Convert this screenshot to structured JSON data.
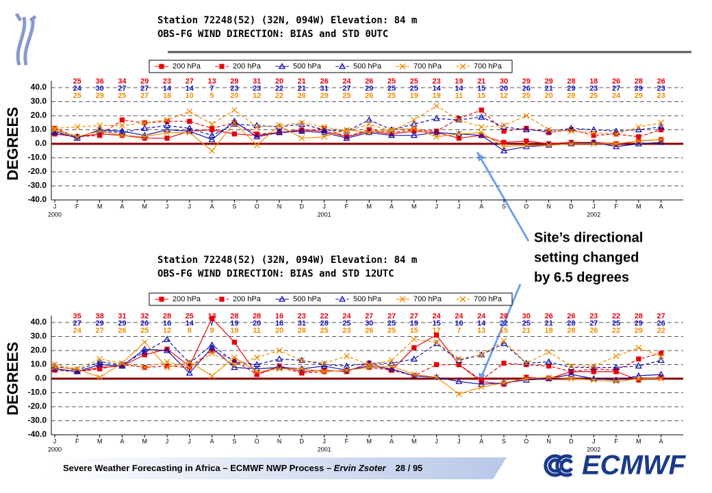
{
  "chart_data": [
    {
      "type": "line",
      "title": "Station 72248(52)  (32N, 094W) Elevation:   84 m",
      "subtitle": "OBS-FG WIND DIRECTION: BIAS and STD 0UTC",
      "ylabel": "DEGREES",
      "categories": [
        "J",
        "F",
        "M",
        "A",
        "M",
        "J",
        "J",
        "A",
        "S",
        "O",
        "N",
        "D",
        "J",
        "F",
        "M",
        "A",
        "M",
        "J",
        "J",
        "A",
        "S",
        "O",
        "N",
        "D",
        "J",
        "F",
        "M",
        "A"
      ],
      "years": [
        "2000",
        "2001",
        "2002"
      ],
      "ylim": [
        -40,
        40
      ],
      "yticks": [
        {
          "value": -40,
          "label": "-40.0"
        },
        {
          "value": -30,
          "label": "-30.0"
        },
        {
          "value": -20,
          "label": "-20.0"
        },
        {
          "value": -10,
          "label": "-10.0"
        },
        {
          "value": 0,
          "label": "0.0"
        },
        {
          "value": 10,
          "label": "10.0"
        },
        {
          "value": 20,
          "label": "20.0"
        },
        {
          "value": 30,
          "label": "30.0"
        },
        {
          "value": 40,
          "label": "40.0"
        }
      ],
      "grid": true,
      "hline": 0,
      "hline_color": "#8b0000",
      "series": [
        {
          "name": "200 hPa",
          "color": "#e8000b",
          "marker": "square",
          "line_style": "solid",
          "values": [
            7,
            5,
            7,
            6,
            4,
            4,
            9,
            10,
            7,
            6,
            8,
            10,
            9,
            5,
            9,
            7,
            9,
            8,
            4,
            6,
            1,
            2,
            0,
            1,
            1,
            0,
            2,
            3
          ]
        },
        {
          "name": "200 hPa",
          "color": "#e8000b",
          "marker": "square",
          "line_style": "dashed",
          "values": [
            11,
            5,
            6,
            17,
            15,
            16,
            16,
            11,
            15,
            7,
            8,
            9,
            11,
            5,
            10,
            8,
            10,
            9,
            18,
            24,
            9,
            11,
            8,
            10,
            6,
            7,
            5,
            10
          ]
        },
        {
          "name": "500 hPa",
          "color": "#1010b0",
          "marker": "triangle",
          "line_style": "solid",
          "values": [
            9,
            4,
            10,
            9,
            6,
            10,
            9,
            3,
            16,
            5,
            8,
            9,
            8,
            4,
            8,
            6,
            6,
            8,
            7,
            6,
            -5,
            -2,
            -1,
            0,
            1,
            -2,
            0,
            1
          ]
        },
        {
          "name": "500 hPa",
          "color": "#1010b0",
          "marker": "triangle",
          "line_style": "dashed",
          "values": [
            8,
            5,
            9,
            8,
            11,
            13,
            11,
            6,
            14,
            13,
            12,
            14,
            10,
            9,
            17,
            10,
            14,
            18,
            17,
            19,
            12,
            10,
            9,
            11,
            10,
            9,
            10,
            12
          ]
        },
        {
          "name": "700 hPa",
          "color": "#f08c00",
          "marker": "x",
          "line_style": "solid",
          "values": [
            10,
            5,
            9,
            6,
            5,
            8,
            8,
            -5,
            15,
            -1,
            13,
            4,
            5,
            10,
            8,
            10,
            11,
            5,
            7,
            8,
            -2,
            -1,
            -1,
            0,
            0,
            0,
            2,
            3
          ]
        },
        {
          "name": "700 hPa",
          "color": "#f08c00",
          "marker": "x",
          "line_style": "dashed",
          "values": [
            11,
            12,
            13,
            13,
            15,
            17,
            23,
            14,
            24,
            12,
            13,
            15,
            12,
            9,
            14,
            9,
            17,
            27,
            17,
            12,
            13,
            20,
            10,
            9,
            8,
            7,
            12,
            15
          ]
        }
      ],
      "counts": [
        {
          "color": "#e8000b",
          "values": [
            null,
            25,
            36,
            34,
            29,
            23,
            27,
            13,
            29,
            31,
            20,
            21,
            26,
            24,
            26,
            25,
            25,
            23,
            19,
            21,
            30,
            29,
            29,
            28,
            18,
            26,
            28,
            26
          ]
        },
        {
          "color": "#1010b0",
          "values": [
            null,
            24,
            30,
            27,
            27,
            14,
            14,
            7,
            23,
            23,
            22,
            21,
            31,
            27,
            29,
            25,
            25,
            14,
            14,
            15,
            20,
            26,
            21,
            29,
            23,
            27,
            29,
            23
          ]
        },
        {
          "color": "#f08c00",
          "values": [
            null,
            25,
            29,
            25,
            27,
            18,
            10,
            5,
            20,
            12,
            22,
            26,
            29,
            25,
            26,
            25,
            19,
            19,
            11,
            15,
            12,
            25,
            20,
            28,
            25,
            24,
            29,
            23
          ]
        }
      ]
    },
    {
      "type": "line",
      "title": "Station 72248(52)  (32N, 094W) Elevation:   84 m",
      "subtitle": "OBS-FG WIND DIRECTION: BIAS and STD 12UTC",
      "ylabel": "DEGREES",
      "categories": [
        "J",
        "F",
        "M",
        "A",
        "M",
        "J",
        "J",
        "A",
        "S",
        "O",
        "N",
        "D",
        "J",
        "F",
        "M",
        "A",
        "M",
        "J",
        "J",
        "A",
        "S",
        "O",
        "N",
        "D",
        "J",
        "F",
        "M",
        "A"
      ],
      "years": [
        "2000",
        "2001",
        "2002"
      ],
      "ylim": [
        -40,
        40
      ],
      "yticks": [
        {
          "value": -40,
          "label": "-40.0"
        },
        {
          "value": -30,
          "label": "-30.0"
        },
        {
          "value": -20,
          "label": "-20.0"
        },
        {
          "value": -10,
          "label": "-10.0"
        },
        {
          "value": 0,
          "label": "0.0"
        },
        {
          "value": 10,
          "label": "10.0"
        },
        {
          "value": 20,
          "label": "20.0"
        },
        {
          "value": 30,
          "label": "30.0"
        },
        {
          "value": 40,
          "label": "40.0"
        }
      ],
      "grid": true,
      "hline": 0,
      "hline_color": "#8b0000",
      "series": [
        {
          "name": "200 hPa",
          "color": "#e8000b",
          "marker": "square",
          "line_style": "solid",
          "values": [
            7,
            5,
            8,
            9,
            17,
            21,
            9,
            43,
            26,
            3,
            9,
            5,
            6,
            5,
            11,
            6,
            22,
            31,
            10,
            -2,
            -4,
            1,
            0,
            5,
            5,
            5,
            -1,
            1
          ]
        },
        {
          "name": "200 hPa",
          "color": "#e8000b",
          "marker": "square",
          "line_style": "dashed",
          "values": [
            6,
            5,
            7,
            10,
            8,
            9,
            8,
            20,
            13,
            3,
            8,
            4,
            5,
            6,
            8,
            6,
            2,
            10,
            10,
            -1,
            11,
            10,
            9,
            5,
            7,
            6,
            14,
            18
          ]
        },
        {
          "name": "500 hPa",
          "color": "#1010b0",
          "marker": "triangle",
          "line_style": "solid",
          "values": [
            7,
            5,
            10,
            9,
            21,
            20,
            4,
            22,
            8,
            7,
            8,
            7,
            9,
            6,
            9,
            7,
            2,
            1,
            -2,
            -4,
            -3,
            -1,
            0,
            3,
            0,
            -1,
            2,
            3
          ]
        },
        {
          "name": "500 hPa",
          "color": "#1010b0",
          "marker": "triangle",
          "line_style": "dashed",
          "values": [
            9,
            6,
            12,
            10,
            19,
            28,
            11,
            24,
            12,
            10,
            14,
            13,
            10,
            9,
            11,
            11,
            14,
            25,
            13,
            17,
            25,
            11,
            12,
            8,
            8,
            8,
            9,
            13
          ]
        },
        {
          "name": "700 hPa",
          "color": "#f08c00",
          "marker": "x",
          "line_style": "solid",
          "values": [
            8,
            7,
            1,
            11,
            26,
            8,
            12,
            2,
            15,
            5,
            7,
            7,
            5,
            6,
            8,
            9,
            3,
            1,
            -11,
            -6,
            -3,
            0,
            1,
            0,
            -1,
            -2,
            0,
            0
          ]
        },
        {
          "name": "700 hPa",
          "color": "#f08c00",
          "marker": "x",
          "line_style": "dashed",
          "values": [
            10,
            7,
            14,
            11,
            8,
            12,
            8,
            18,
            10,
            15,
            20,
            13,
            11,
            16,
            10,
            13,
            28,
            26,
            14,
            17,
            27,
            11,
            19,
            9,
            9,
            16,
            22,
            16
          ]
        }
      ],
      "counts": [
        {
          "color": "#e8000b",
          "values": [
            null,
            35,
            38,
            31,
            32,
            28,
            25,
            13,
            28,
            28,
            16,
            23,
            22,
            24,
            27,
            27,
            27,
            24,
            24,
            24,
            28,
            30,
            26,
            26,
            23,
            22,
            28,
            27
          ]
        },
        {
          "color": "#1010b0",
          "values": [
            null,
            27,
            29,
            29,
            26,
            16,
            14,
            7,
            19,
            20,
            18,
            31,
            28,
            25,
            30,
            25,
            19,
            15,
            16,
            14,
            22,
            25,
            21,
            28,
            27,
            25,
            29,
            26
          ]
        },
        {
          "color": "#f08c00",
          "values": [
            null,
            24,
            27,
            26,
            25,
            12,
            8,
            9,
            19,
            11,
            20,
            28,
            25,
            23,
            26,
            25,
            15,
            17,
            7,
            13,
            15,
            21,
            18,
            28,
            26,
            22,
            29,
            22
          ]
        }
      ]
    }
  ],
  "annotation": [
    "Site’s directional",
    "setting changed",
    "by 6.5 degrees"
  ],
  "footer": {
    "text": "Severe Weather Forecasting in Africa – ECMWF NWP Process – ",
    "author": "Ervin Zsoter",
    "page": "28 / 95"
  },
  "logo": "ECMWF"
}
